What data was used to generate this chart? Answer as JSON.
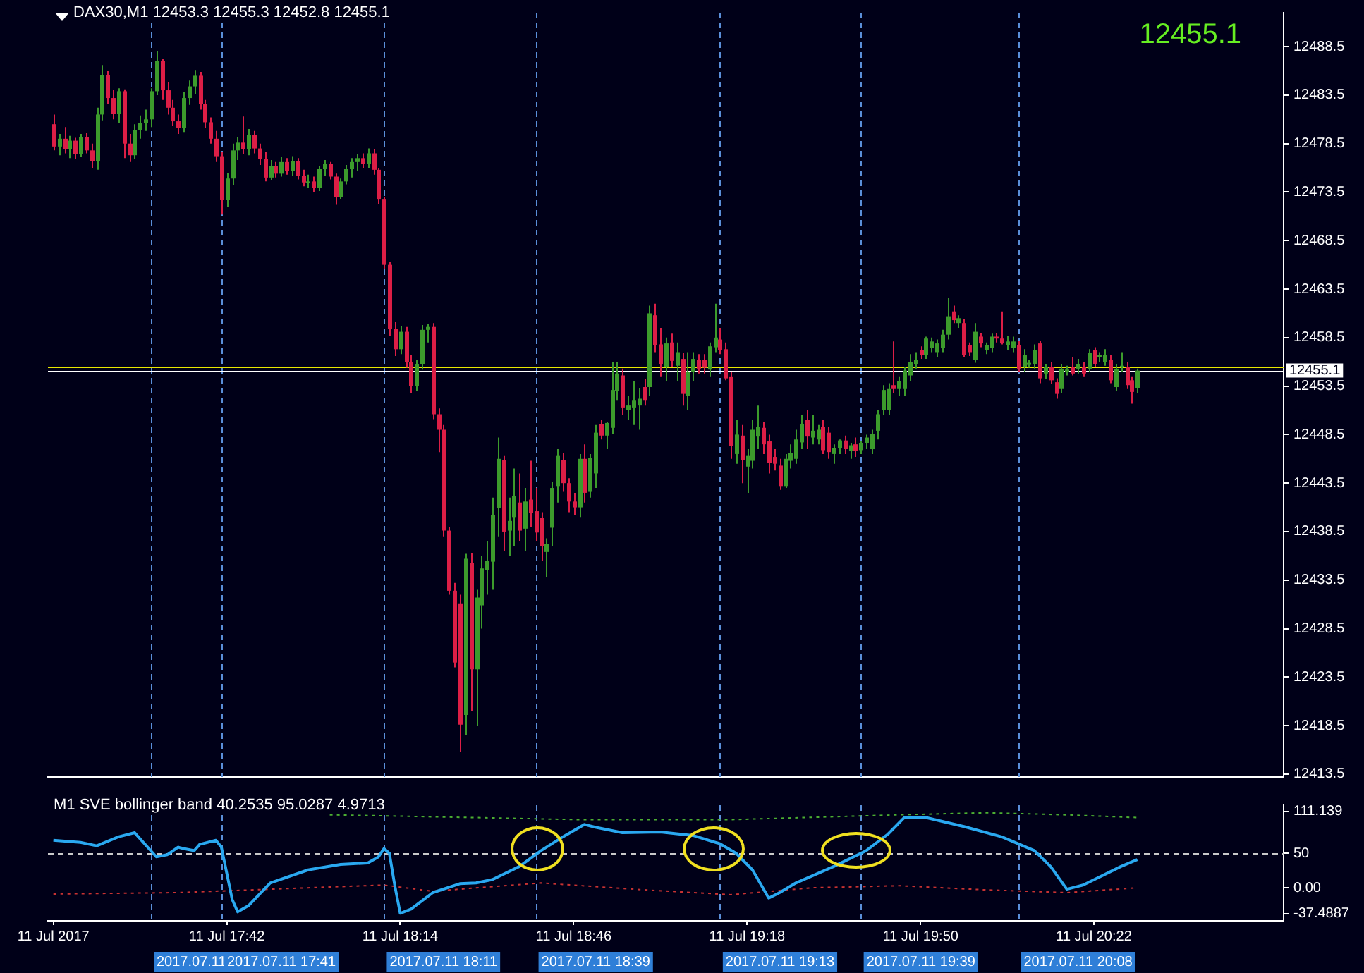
{
  "chart_data": [
    {
      "type": "candlestick",
      "title": "DAX30,M1  12453.3 12455.3 12452.8 12455.1",
      "annotations": [
        "12455.1"
      ],
      "xlim": [
        "2017-07-11T17:09",
        "2017-07-11T20:57"
      ],
      "ylim": [
        12413.2,
        12492.0
      ],
      "yticks": [
        12413.5,
        12418.5,
        12423.5,
        12428.5,
        12433.5,
        12438.5,
        12443.5,
        12448.5,
        12453.5,
        12458.5,
        12463.5,
        12468.5,
        12473.5,
        12478.5,
        12483.5,
        12488.5
      ],
      "tick_labels": "y",
      "ref_lines": [
        {
          "axis": "x",
          "value": "2017-07-11T17:28",
          "label": null,
          "color": "#5b8fd9",
          "line_style": "dashed"
        },
        {
          "axis": "x",
          "value": "2017-07-11T17:41",
          "label": null,
          "color": "#5b8fd9",
          "line_style": "dashed"
        },
        {
          "axis": "x",
          "value": "2017-07-11T18:11",
          "label": null,
          "color": "#5b8fd9",
          "line_style": "dashed"
        },
        {
          "axis": "x",
          "value": "2017-07-11T18:39",
          "label": null,
          "color": "#5b8fd9",
          "line_style": "dashed"
        },
        {
          "axis": "x",
          "value": "2017-07-11T19:13",
          "label": null,
          "color": "#5b8fd9",
          "line_style": "dashed"
        },
        {
          "axis": "x",
          "value": "2017-07-11T19:39",
          "label": null,
          "color": "#5b8fd9",
          "line_style": "dashed"
        },
        {
          "axis": "x",
          "value": "2017-07-11T20:08",
          "label": null,
          "color": "#5b8fd9",
          "line_style": "dashed"
        },
        {
          "axis": "y",
          "value": 12455.5,
          "label": null,
          "color": "#e8e800",
          "line_style": "solid"
        },
        {
          "axis": "y",
          "value": 12455.1,
          "label": "12455.1",
          "color": "#ffffff",
          "line_style": "solid"
        }
      ],
      "x": [
        "2017-07-11T17:10",
        "2017-07-11T17:11",
        "2017-07-11T17:12",
        "2017-07-11T17:13",
        "2017-07-11T17:14",
        "2017-07-11T17:15",
        "2017-07-11T17:16",
        "2017-07-11T17:17",
        "2017-07-11T17:18",
        "2017-07-11T17:19",
        "2017-07-11T17:20",
        "2017-07-11T17:21",
        "2017-07-11T17:22",
        "2017-07-11T17:23",
        "2017-07-11T17:24",
        "2017-07-11T17:25",
        "2017-07-11T17:26",
        "2017-07-11T17:27",
        "2017-07-11T17:28",
        "2017-07-11T17:29",
        "2017-07-11T17:30",
        "2017-07-11T17:31",
        "2017-07-11T17:32",
        "2017-07-11T17:33",
        "2017-07-11T17:34",
        "2017-07-11T17:35",
        "2017-07-11T17:36",
        "2017-07-11T17:37",
        "2017-07-11T17:38",
        "2017-07-11T17:39",
        "2017-07-11T17:40",
        "2017-07-11T17:41",
        "2017-07-11T17:42",
        "2017-07-11T17:43",
        "2017-07-11T17:44",
        "2017-07-11T17:45",
        "2017-07-11T17:46",
        "2017-07-11T17:47",
        "2017-07-11T17:48",
        "2017-07-11T17:49",
        "2017-07-11T17:50",
        "2017-07-11T17:51",
        "2017-07-11T17:52",
        "2017-07-11T17:53",
        "2017-07-11T17:54",
        "2017-07-11T17:55",
        "2017-07-11T17:56",
        "2017-07-11T17:57",
        "2017-07-11T17:58",
        "2017-07-11T17:59",
        "2017-07-11T18:00",
        "2017-07-11T18:01",
        "2017-07-11T18:02",
        "2017-07-11T18:03",
        "2017-07-11T18:04",
        "2017-07-11T18:05",
        "2017-07-11T18:06",
        "2017-07-11T18:07",
        "2017-07-11T18:08",
        "2017-07-11T18:09",
        "2017-07-11T18:10",
        "2017-07-11T18:11",
        "2017-07-11T18:12",
        "2017-07-11T18:13",
        "2017-07-11T18:14",
        "2017-07-11T18:15",
        "2017-07-11T18:16",
        "2017-07-11T18:17",
        "2017-07-11T18:18",
        "2017-07-11T18:19",
        "2017-07-11T18:20",
        "2017-07-11T18:21",
        "2017-07-11T18:22",
        "2017-07-11T18:23",
        "2017-07-11T18:24",
        "2017-07-11T18:25",
        "2017-07-11T18:26",
        "2017-07-11T18:27",
        "2017-07-11T18:28",
        "2017-07-11T18:29",
        "2017-07-11T18:30",
        "2017-07-11T18:31",
        "2017-07-11T18:32",
        "2017-07-11T18:33",
        "2017-07-11T18:34",
        "2017-07-11T18:35",
        "2017-07-11T18:36",
        "2017-07-11T18:37",
        "2017-07-11T18:38",
        "2017-07-11T18:39",
        "2017-07-11T18:40",
        "2017-07-11T18:41",
        "2017-07-11T18:42",
        "2017-07-11T18:43",
        "2017-07-11T18:44",
        "2017-07-11T18:45",
        "2017-07-11T18:46",
        "2017-07-11T18:47",
        "2017-07-11T18:48",
        "2017-07-11T18:49",
        "2017-07-11T18:50",
        "2017-07-11T18:51",
        "2017-07-11T18:52",
        "2017-07-11T18:53",
        "2017-07-11T18:54",
        "2017-07-11T18:55",
        "2017-07-11T18:56",
        "2017-07-11T18:57",
        "2017-07-11T18:58",
        "2017-07-11T18:59",
        "2017-07-11T19:00",
        "2017-07-11T19:01",
        "2017-07-11T19:02",
        "2017-07-11T19:03",
        "2017-07-11T19:04",
        "2017-07-11T19:05",
        "2017-07-11T19:06",
        "2017-07-11T19:07",
        "2017-07-11T19:08",
        "2017-07-11T19:09",
        "2017-07-11T19:10",
        "2017-07-11T19:11",
        "2017-07-11T19:12",
        "2017-07-11T19:13",
        "2017-07-11T19:14",
        "2017-07-11T19:15",
        "2017-07-11T19:16",
        "2017-07-11T19:17",
        "2017-07-11T19:18",
        "2017-07-11T19:19",
        "2017-07-11T19:20",
        "2017-07-11T19:21",
        "2017-07-11T19:22",
        "2017-07-11T19:23",
        "2017-07-11T19:24",
        "2017-07-11T19:25",
        "2017-07-11T19:26",
        "2017-07-11T19:27",
        "2017-07-11T19:28",
        "2017-07-11T19:29",
        "2017-07-11T19:30",
        "2017-07-11T19:31",
        "2017-07-11T19:32",
        "2017-07-11T19:33",
        "2017-07-11T19:34",
        "2017-07-11T19:35",
        "2017-07-11T19:36",
        "2017-07-11T19:37",
        "2017-07-11T19:38",
        "2017-07-11T19:39",
        "2017-07-11T19:40",
        "2017-07-11T19:41",
        "2017-07-11T19:42",
        "2017-07-11T19:43",
        "2017-07-11T19:44",
        "2017-07-11T19:45",
        "2017-07-11T19:46",
        "2017-07-11T19:47",
        "2017-07-11T19:48",
        "2017-07-11T19:49",
        "2017-07-11T19:50",
        "2017-07-11T19:51",
        "2017-07-11T19:52",
        "2017-07-11T19:53",
        "2017-07-11T19:54",
        "2017-07-11T19:55",
        "2017-07-11T19:56",
        "2017-07-11T19:57",
        "2017-07-11T19:58",
        "2017-07-11T19:59",
        "2017-07-11T20:00",
        "2017-07-11T20:01",
        "2017-07-11T20:02",
        "2017-07-11T20:03",
        "2017-07-11T20:04",
        "2017-07-11T20:05",
        "2017-07-11T20:06",
        "2017-07-11T20:07",
        "2017-07-11T20:08",
        "2017-07-11T20:09",
        "2017-07-11T20:10",
        "2017-07-11T20:11",
        "2017-07-11T20:12",
        "2017-07-11T20:13",
        "2017-07-11T20:14",
        "2017-07-11T20:15",
        "2017-07-11T20:16",
        "2017-07-11T20:17",
        "2017-07-11T20:18",
        "2017-07-11T20:19",
        "2017-07-11T20:20",
        "2017-07-11T20:21",
        "2017-07-11T20:22",
        "2017-07-11T20:23",
        "2017-07-11T20:24",
        "2017-07-11T20:25",
        "2017-07-11T20:26",
        "2017-07-11T20:27",
        "2017-07-11T20:28",
        "2017-07-11T20:29",
        "2017-07-11T20:30"
      ],
      "ohlc": [
        [
          12480.5,
          12481.5,
          12477.8,
          12478.2
        ],
        [
          12478.2,
          12479.5,
          12477.3,
          12479.0
        ],
        [
          12479.0,
          12480.2,
          12477.5,
          12477.9
        ],
        [
          12477.9,
          12479.3,
          12477.0,
          12478.8
        ],
        [
          12478.8,
          12479.1,
          12476.9,
          12477.4
        ],
        [
          12477.4,
          12479.5,
          12477.1,
          12479.2
        ],
        [
          12479.2,
          12479.6,
          12477.5,
          12477.8
        ],
        [
          12477.8,
          12478.5,
          12476.0,
          12476.7
        ],
        [
          12476.7,
          12482.2,
          12475.8,
          12481.5
        ],
        [
          12481.5,
          12486.6,
          12480.9,
          12485.6
        ],
        [
          12485.6,
          12486.0,
          12482.6,
          12483.2
        ],
        [
          12483.2,
          12484.0,
          12481.0,
          12481.6
        ],
        [
          12481.6,
          12484.2,
          12480.6,
          12483.9
        ],
        [
          12483.9,
          12484.1,
          12477.0,
          12478.5
        ],
        [
          12478.5,
          12479.5,
          12476.6,
          12477.3
        ],
        [
          12477.3,
          12480.5,
          12476.9,
          12479.9
        ],
        [
          12479.9,
          12481.4,
          12479.0,
          12480.6
        ],
        [
          12480.6,
          12482.0,
          12479.8,
          12481.0
        ],
        [
          12481.0,
          12484.2,
          12480.2,
          12483.9
        ],
        [
          12483.9,
          12488.0,
          12483.5,
          12487.0
        ],
        [
          12487.0,
          12487.2,
          12483.0,
          12484.0
        ],
        [
          12484.0,
          12484.8,
          12481.5,
          12482.2
        ],
        [
          12482.2,
          12483.0,
          12480.3,
          12480.8
        ],
        [
          12480.8,
          12481.5,
          12479.5,
          12480.1
        ],
        [
          12480.1,
          12483.8,
          12479.7,
          12483.2
        ],
        [
          12483.2,
          12485.0,
          12482.5,
          12484.4
        ],
        [
          12484.4,
          12486.1,
          12483.6,
          12485.5
        ],
        [
          12485.5,
          12485.9,
          12482.0,
          12482.6
        ],
        [
          12482.6,
          12483.0,
          12480.1,
          12480.7
        ],
        [
          12480.7,
          12481.2,
          12478.5,
          12479.0
        ],
        [
          12479.0,
          12479.8,
          12476.6,
          12477.2
        ],
        [
          12477.2,
          12477.6,
          12471.2,
          12472.7
        ],
        [
          12472.7,
          12475.5,
          12472.0,
          12474.9
        ],
        [
          12474.9,
          12478.5,
          12474.2,
          12477.8
        ],
        [
          12477.8,
          12479.2,
          12476.8,
          12478.6
        ],
        [
          12478.6,
          12481.3,
          12477.4,
          12477.9
        ],
        [
          12477.9,
          12480.0,
          12477.3,
          12479.4
        ],
        [
          12479.4,
          12479.8,
          12477.5,
          12478.0
        ],
        [
          12478.0,
          12478.5,
          12476.3,
          12476.9
        ],
        [
          12476.9,
          12477.6,
          12474.6,
          12475.0
        ],
        [
          12475.0,
          12476.8,
          12474.7,
          12476.2
        ],
        [
          12476.2,
          12476.6,
          12475.0,
          12475.4
        ],
        [
          12475.4,
          12477.1,
          12475.1,
          12476.6
        ],
        [
          12476.6,
          12477.0,
          12475.3,
          12475.7
        ],
        [
          12475.7,
          12477.2,
          12475.2,
          12476.7
        ],
        [
          12476.7,
          12477.0,
          12474.8,
          12475.2
        ],
        [
          12475.2,
          12475.8,
          12474.1,
          12474.5
        ],
        [
          12474.5,
          12475.3,
          12473.9,
          12474.6
        ],
        [
          12474.6,
          12475.1,
          12473.5,
          12473.9
        ],
        [
          12473.9,
          12476.2,
          12473.6,
          12475.9
        ],
        [
          12475.9,
          12476.8,
          12475.2,
          12476.4
        ],
        [
          12476.4,
          12476.6,
          12474.8,
          12475.1
        ],
        [
          12475.1,
          12475.4,
          12472.2,
          12473.0
        ],
        [
          12473.0,
          12474.9,
          12472.8,
          12474.6
        ],
        [
          12474.6,
          12476.3,
          12474.3,
          12475.9
        ],
        [
          12475.9,
          12477.0,
          12475.0,
          12476.6
        ],
        [
          12476.6,
          12477.4,
          12475.7,
          12477.0
        ],
        [
          12477.0,
          12477.5,
          12476.0,
          12476.4
        ],
        [
          12476.4,
          12478.0,
          12476.0,
          12477.5
        ],
        [
          12477.5,
          12477.9,
          12475.3,
          12475.8
        ],
        [
          12475.8,
          12476.0,
          12472.3,
          12472.8
        ],
        [
          12472.8,
          12473.0,
          12465.6,
          12466.0
        ],
        [
          12466.0,
          12466.3,
          12458.7,
          12459.4
        ],
        [
          12459.4,
          12460.1,
          12456.6,
          12457.3
        ],
        [
          12457.3,
          12459.7,
          12456.8,
          12459.1
        ],
        [
          12459.1,
          12459.6,
          12455.4,
          12456.0
        ],
        [
          12456.0,
          12456.7,
          12452.8,
          12453.5
        ],
        [
          12453.5,
          12456.2,
          12453.0,
          12455.8
        ],
        [
          12455.8,
          12459.8,
          12455.2,
          12459.3
        ],
        [
          12459.3,
          12459.9,
          12458.0,
          12459.6
        ],
        [
          12459.6,
          12460.0,
          12450.1,
          12450.6
        ],
        [
          12450.6,
          12451.2,
          12446.7,
          12449.0
        ],
        [
          12449.0,
          12449.5,
          12438.0,
          12438.6
        ],
        [
          12438.6,
          12439.0,
          12432.0,
          12432.4
        ],
        [
          12432.4,
          12433.2,
          12424.5,
          12425.0
        ],
        [
          12431.1,
          12432.0,
          12415.8,
          12418.6
        ],
        [
          12419.6,
          12436.2,
          12417.5,
          12435.7
        ],
        [
          12435.3,
          12436.3,
          12420.0,
          12424.3
        ],
        [
          12424.3,
          12432.5,
          12418.5,
          12431.7
        ],
        [
          12430.9,
          12436.0,
          12428.5,
          12434.7
        ],
        [
          12434.5,
          12437.5,
          12432.0,
          12435.5
        ],
        [
          12435.4,
          12442.0,
          12432.5,
          12440.2
        ],
        [
          12440.9,
          12448.2,
          12438.0,
          12446.0
        ],
        [
          12445.9,
          12446.3,
          12436.5,
          12438.5
        ],
        [
          12438.6,
          12442.0,
          12436.0,
          12439.6
        ],
        [
          12440.0,
          12445.0,
          12437.0,
          12442.2
        ],
        [
          12441.5,
          12444.5,
          12437.5,
          12438.6
        ],
        [
          12438.8,
          12443.0,
          12436.5,
          12441.6
        ],
        [
          12441.8,
          12445.8,
          12439.0,
          12440.4
        ],
        [
          12440.6,
          12443.0,
          12437.5,
          12438.4
        ],
        [
          12439.9,
          12440.5,
          12435.5,
          12437.0
        ],
        [
          12436.4,
          12437.8,
          12433.8,
          12437.2
        ],
        [
          12438.9,
          12443.6,
          12437.0,
          12443.0
        ],
        [
          12443.2,
          12447.0,
          12441.5,
          12446.3
        ],
        [
          12445.9,
          12446.6,
          12442.6,
          12443.5
        ],
        [
          12443.5,
          12444.0,
          12440.5,
          12441.6
        ],
        [
          12441.6,
          12442.5,
          12440.2,
          12441.0
        ],
        [
          12441.0,
          12446.5,
          12440.0,
          12446.0
        ],
        [
          12446.0,
          12447.5,
          12441.5,
          12442.5
        ],
        [
          12442.6,
          12446.5,
          12442.0,
          12446.1
        ],
        [
          12444.5,
          12449.5,
          12443.0,
          12448.7
        ],
        [
          12449.6,
          12450.0,
          12448.0,
          12448.4
        ],
        [
          12448.4,
          12449.8,
          12447.0,
          12449.7
        ],
        [
          12449.2,
          12456.0,
          12448.6,
          12453.1
        ],
        [
          12453.0,
          12456.0,
          12452.0,
          12454.8
        ],
        [
          12454.6,
          12455.3,
          12450.5,
          12451.3
        ],
        [
          12451.0,
          12452.5,
          12450.0,
          12451.5
        ],
        [
          12451.3,
          12454.0,
          12449.5,
          12452.0
        ],
        [
          12451.5,
          12453.3,
          12449.0,
          12452.2
        ],
        [
          12453.4,
          12454.2,
          12451.5,
          12452.0
        ],
        [
          12453.4,
          12461.8,
          12452.5,
          12461.0
        ],
        [
          12460.8,
          12462.0,
          12457.0,
          12457.7
        ],
        [
          12457.8,
          12459.5,
          12454.5,
          12455.8
        ],
        [
          12455.5,
          12458.5,
          12454.0,
          12457.9
        ],
        [
          12458.0,
          12458.9,
          12455.5,
          12456.1
        ],
        [
          12455.6,
          12458.0,
          12454.0,
          12457.0
        ],
        [
          12456.3,
          12456.9,
          12451.5,
          12452.7
        ],
        [
          12452.5,
          12457.0,
          12451.0,
          12455.0
        ],
        [
          12455.0,
          12457.0,
          12454.0,
          12456.3
        ],
        [
          12456.2,
          12456.8,
          12454.8,
          12455.3
        ],
        [
          12456.2,
          12456.8,
          12454.8,
          12455.4
        ],
        [
          12455.2,
          12458.0,
          12454.5,
          12457.6
        ],
        [
          12457.5,
          12462.0,
          12457.0,
          12458.5
        ],
        [
          12458.3,
          12459.5,
          12456.8,
          12457.2
        ],
        [
          12457.3,
          12458.0,
          12454.1,
          12454.3
        ],
        [
          12454.5,
          12455.0,
          12446.0,
          12447.3
        ],
        [
          12446.5,
          12450.0,
          12445.5,
          12448.5
        ],
        [
          12448.4,
          12449.5,
          12443.5,
          12445.9
        ],
        [
          12445.2,
          12447.0,
          12442.5,
          12446.3
        ],
        [
          12445.8,
          12450.0,
          12445.0,
          12449.0
        ],
        [
          12448.3,
          12451.5,
          12447.0,
          12449.3
        ],
        [
          12449.2,
          12449.8,
          12446.5,
          12447.5
        ],
        [
          12447.8,
          12448.5,
          12444.5,
          12445.6
        ],
        [
          12446.2,
          12447.0,
          12444.8,
          12445.5
        ],
        [
          12445.3,
          12446.0,
          12442.8,
          12443.2
        ],
        [
          12443.2,
          12446.5,
          12443.0,
          12446.0
        ],
        [
          12445.8,
          12447.5,
          12445.0,
          12446.6
        ],
        [
          12446.0,
          12449.0,
          12445.5,
          12448.0
        ],
        [
          12447.7,
          12450.5,
          12447.0,
          12449.6
        ],
        [
          12450.0,
          12451.0,
          12447.0,
          12448.3
        ],
        [
          12448.2,
          12450.5,
          12447.5,
          12448.9
        ],
        [
          12448.0,
          12449.5,
          12447.5,
          12449.0
        ],
        [
          12449.3,
          12450.0,
          12446.5,
          12446.9
        ],
        [
          12448.7,
          12449.3,
          12446.0,
          12446.7
        ],
        [
          12446.5,
          12447.5,
          12445.5,
          12447.1
        ],
        [
          12447.1,
          12448.0,
          12446.5,
          12447.9
        ],
        [
          12447.9,
          12448.4,
          12446.5,
          12447.0
        ],
        [
          12446.8,
          12447.6,
          12446.0,
          12447.4
        ],
        [
          12447.5,
          12448.2,
          12446.2,
          12446.8
        ],
        [
          12446.9,
          12447.8,
          12446.5,
          12447.6
        ],
        [
          12447.6,
          12448.5,
          12447.0,
          12448.2
        ],
        [
          12447.0,
          12449.0,
          12446.5,
          12448.6
        ],
        [
          12448.9,
          12451.0,
          12448.0,
          12450.6
        ],
        [
          12451.0,
          12453.6,
          12450.5,
          12453.1
        ],
        [
          12451.0,
          12453.8,
          12450.5,
          12453.2
        ],
        [
          12453.6,
          12458.1,
          12452.8,
          12453.2
        ],
        [
          12453.2,
          12454.5,
          12452.5,
          12454.0
        ],
        [
          12453.2,
          12455.5,
          12452.5,
          12455.1
        ],
        [
          12454.6,
          12456.8,
          12454.0,
          12456.0
        ],
        [
          12455.8,
          12457.0,
          12455.3,
          12456.2
        ],
        [
          12457.2,
          12457.6,
          12456.3,
          12456.7
        ],
        [
          12456.7,
          12458.6,
          12456.3,
          12458.4
        ],
        [
          12457.4,
          12458.5,
          12457.0,
          12458.1
        ],
        [
          12457.0,
          12458.3,
          12456.5,
          12457.9
        ],
        [
          12457.4,
          12459.3,
          12457.0,
          12458.8
        ],
        [
          12458.8,
          12462.6,
          12458.3,
          12460.7
        ],
        [
          12461.2,
          12461.8,
          12460.0,
          12460.3
        ],
        [
          12460.0,
          12460.8,
          12459.5,
          12460.5
        ],
        [
          12460.0,
          12460.4,
          12456.5,
          12456.7
        ],
        [
          12457.7,
          12458.0,
          12456.6,
          12457.0
        ],
        [
          12456.2,
          12460.0,
          12455.9,
          12459.1
        ],
        [
          12458.6,
          12459.0,
          12457.5,
          12457.9
        ],
        [
          12457.2,
          12458.0,
          12456.8,
          12457.7
        ],
        [
          12457.4,
          12458.9,
          12457.0,
          12458.6
        ],
        [
          12458.6,
          12459.0,
          12458.0,
          12458.4
        ],
        [
          12458.4,
          12461.2,
          12457.8,
          12457.9
        ],
        [
          12457.7,
          12458.7,
          12457.2,
          12458.1
        ],
        [
          12457.4,
          12458.6,
          12457.0,
          12458.1
        ],
        [
          12457.7,
          12458.2,
          12455.0,
          12455.3
        ],
        [
          12455.5,
          12457.3,
          12455.0,
          12456.7
        ],
        [
          12455.8,
          12456.2,
          12455.4,
          12455.9
        ],
        [
          12455.8,
          12457.8,
          12455.3,
          12457.2
        ],
        [
          12457.9,
          12458.2,
          12453.8,
          12454.3
        ],
        [
          12454.8,
          12455.8,
          12454.2,
          12455.5
        ],
        [
          12455.5,
          12456.0,
          12453.7,
          12454.1
        ],
        [
          12453.9,
          12454.3,
          12452.2,
          12452.7
        ],
        [
          12453.2,
          12455.8,
          12452.8,
          12455.3
        ],
        [
          12455.0,
          12455.6,
          12454.6,
          12455.2
        ],
        [
          12455.5,
          12456.5,
          12454.6,
          12454.8
        ],
        [
          12455.3,
          12456.3,
          12454.8,
          12455.8
        ],
        [
          12455.5,
          12456.0,
          12454.5,
          12454.8
        ],
        [
          12455.3,
          12457.3,
          12455.0,
          12456.9
        ],
        [
          12457.2,
          12457.5,
          12455.5,
          12455.8
        ],
        [
          12456.5,
          12457.0,
          12456.0,
          12456.7
        ],
        [
          12456.0,
          12457.3,
          12455.6,
          12456.7
        ],
        [
          12456.2,
          12456.7,
          12453.8,
          12454.1
        ],
        [
          12453.4,
          12455.8,
          12453.0,
          12455.3
        ],
        [
          12455.5,
          12457.0,
          12455.0,
          12455.6
        ],
        [
          12455.5,
          12456.0,
          12453.2,
          12453.6
        ],
        [
          12454.1,
          12454.5,
          12451.7,
          12452.9
        ],
        [
          12453.3,
          12455.3,
          12452.8,
          12455.1
        ]
      ],
      "colors": [
        "#dc1e46",
        "#3c9b2c",
        "#dc1e46",
        "#3c9b2c",
        "#dc1e46",
        "#3c9b2c",
        "#dc1e46",
        "#dc1e46",
        "#3c9b2c",
        "#3c9b2c",
        "#dc1e46",
        "#dc1e46",
        "#3c9b2c",
        "#dc1e46",
        "#dc1e46",
        "#3c9b2c",
        "#3c9b2c",
        "#3c9b2c",
        "#3c9b2c",
        "#3c9b2c",
        "#dc1e46",
        "#dc1e46",
        "#dc1e46",
        "#dc1e46",
        "#3c9b2c",
        "#3c9b2c",
        "#3c9b2c",
        "#dc1e46",
        "#dc1e46",
        "#dc1e46",
        "#dc1e46",
        "#dc1e46",
        "#3c9b2c",
        "#3c9b2c",
        "#3c9b2c",
        "#dc1e46",
        "#3c9b2c",
        "#dc1e46",
        "#dc1e46",
        "#dc1e46",
        "#3c9b2c",
        "#dc1e46",
        "#3c9b2c",
        "#dc1e46",
        "#3c9b2c",
        "#dc1e46",
        "#dc1e46",
        "#3c9b2c",
        "#dc1e46",
        "#3c9b2c",
        "#3c9b2c",
        "#dc1e46",
        "#dc1e46",
        "#3c9b2c",
        "#3c9b2c",
        "#3c9b2c",
        "#3c9b2c",
        "#dc1e46",
        "#3c9b2c",
        "#dc1e46",
        "#dc1e46",
        "#dc1e46",
        "#dc1e46",
        "#dc1e46",
        "#3c9b2c",
        "#dc1e46",
        "#dc1e46",
        "#3c9b2c",
        "#3c9b2c",
        "#3c9b2c",
        "#dc1e46",
        "#dc1e46",
        "#dc1e46",
        "#dc1e46",
        "#dc1e46",
        "#dc1e46",
        "#3c9b2c",
        "#dc1e46",
        "#3c9b2c",
        "#3c9b2c",
        "#3c9b2c",
        "#3c9b2c",
        "#3c9b2c",
        "#dc1e46",
        "#3c9b2c",
        "#3c9b2c",
        "#dc1e46",
        "#3c9b2c",
        "#dc1e46",
        "#dc1e46",
        "#dc1e46",
        "#3c9b2c",
        "#3c9b2c",
        "#3c9b2c",
        "#dc1e46",
        "#dc1e46",
        "#dc1e46",
        "#3c9b2c",
        "#dc1e46",
        "#3c9b2c",
        "#3c9b2c",
        "#dc1e46",
        "#3c9b2c",
        "#3c9b2c",
        "#3c9b2c",
        "#dc1e46",
        "#3c9b2c",
        "#3c9b2c",
        "#3c9b2c",
        "#dc1e46",
        "#3c9b2c",
        "#dc1e46",
        "#dc1e46",
        "#3c9b2c",
        "#dc1e46",
        "#3c9b2c",
        "#dc1e46",
        "#3c9b2c",
        "#3c9b2c",
        "#dc1e46",
        "#dc1e46",
        "#3c9b2c",
        "#3c9b2c",
        "#dc1e46",
        "#dc1e46",
        "#dc1e46",
        "#3c9b2c",
        "#dc1e46",
        "#3c9b2c",
        "#3c9b2c",
        "#3c9b2c",
        "#dc1e46",
        "#dc1e46",
        "#dc1e46",
        "#dc1e46",
        "#3c9b2c",
        "#3c9b2c",
        "#3c9b2c",
        "#3c9b2c",
        "#dc1e46",
        "#3c9b2c",
        "#3c9b2c",
        "#dc1e46",
        "#dc1e46",
        "#3c9b2c",
        "#3c9b2c",
        "#dc1e46",
        "#3c9b2c",
        "#dc1e46",
        "#3c9b2c",
        "#3c9b2c",
        "#3c9b2c",
        "#3c9b2c",
        "#3c9b2c",
        "#3c9b2c",
        "#dc1e46",
        "#3c9b2c",
        "#3c9b2c",
        "#3c9b2c",
        "#3c9b2c",
        "#dc1e46",
        "#3c9b2c",
        "#3c9b2c",
        "#3c9b2c",
        "#3c9b2c",
        "#3c9b2c",
        "#dc1e46",
        "#3c9b2c",
        "#dc1e46",
        "#dc1e46",
        "#3c9b2c",
        "#dc1e46",
        "#3c9b2c",
        "#3c9b2c",
        "#dc1e46",
        "#dc1e46",
        "#3c9b2c",
        "#3c9b2c",
        "#dc1e46",
        "#3c9b2c",
        "#3c9b2c",
        "#3c9b2c",
        "#dc1e46",
        "#3c9b2c",
        "#dc1e46",
        "#dc1e46",
        "#3c9b2c",
        "#3c9b2c",
        "#dc1e46",
        "#3c9b2c",
        "#dc1e46",
        "#3c9b2c",
        "#dc1e46",
        "#3c9b2c",
        "#3c9b2c",
        "#dc1e46",
        "#3c9b2c",
        "#3c9b2c",
        "#dc1e46",
        "#dc1e46",
        "#3c9b2c"
      ]
    },
    {
      "type": "line",
      "title": "M1 SVE bollinger band 40.2535 95.0287 4.9713",
      "xlim": [
        "2017-07-11T17:09",
        "2017-07-11T20:57"
      ],
      "ylim": [
        -48,
        120
      ],
      "xticks": [
        {
          "value": "2017-07-11T17:10",
          "label": "11 Jul 2017"
        },
        {
          "value": "2017-07-11T17:42",
          "label": "11 Jul 17:42"
        },
        {
          "value": "2017-07-11T18:14",
          "label": "11 Jul 18:14"
        },
        {
          "value": "2017-07-11T18:46",
          "label": "11 Jul 18:46"
        },
        {
          "value": "2017-07-11T19:18",
          "label": "11 Jul 19:18"
        },
        {
          "value": "2017-07-11T19:50",
          "label": "11 Jul 19:50"
        },
        {
          "value": "2017-07-11T20:22",
          "label": "11 Jul 20:22"
        }
      ],
      "yticks": [
        -37.4887,
        {
          "value": 0,
          "label": "0.00"
        },
        50,
        111.139
      ],
      "ref_lines": [
        {
          "axis": "x",
          "value": "2017-07-11T17:28",
          "label": "2017.07.11",
          "color": "#5b8fd9",
          "line_style": "dashed"
        },
        {
          "axis": "x",
          "value": "2017-07-11T17:41",
          "label": "2017.07.11 17:41",
          "color": "#5b8fd9",
          "line_style": "dashed"
        },
        {
          "axis": "x",
          "value": "2017-07-11T18:11",
          "label": "2017.07.11 18:11",
          "color": "#5b8fd9",
          "line_style": "dashed"
        },
        {
          "axis": "x",
          "value": "2017-07-11T18:39",
          "label": "2017.07.11 18:39",
          "color": "#5b8fd9",
          "line_style": "dashed"
        },
        {
          "axis": "x",
          "value": "2017-07-11T19:13",
          "label": "2017.07.11 19:13",
          "color": "#5b8fd9",
          "line_style": "dashed"
        },
        {
          "axis": "x",
          "value": "2017-07-11T19:39",
          "label": "2017.07.11 19:39",
          "color": "#5b8fd9",
          "line_style": "dashed"
        },
        {
          "axis": "x",
          "value": "2017-07-11T20:08",
          "label": "2017.07.11 20:08",
          "color": "#5b8fd9",
          "line_style": "dashed"
        },
        {
          "axis": "y",
          "value": 50,
          "label": null,
          "color": "#c8c8c8",
          "line_style": "dashed"
        }
      ],
      "series": [
        {
          "color": "#2aa8f0",
          "line_style": "solid",
          "x": [
            "2017-07-11T17:10",
            "2017-07-11T17:15",
            "2017-07-11T17:18",
            "2017-07-11T17:22",
            "2017-07-11T17:25",
            "2017-07-11T17:29",
            "2017-07-11T17:31",
            "2017-07-11T17:33",
            "2017-07-11T17:34",
            "2017-07-11T17:36",
            "2017-07-11T17:37",
            "2017-07-11T17:40",
            "2017-07-11T17:41",
            "2017-07-11T17:42",
            "2017-07-11T17:43",
            "2017-07-11T17:44",
            "2017-07-11T17:46",
            "2017-07-11T17:50",
            "2017-07-11T17:57",
            "2017-07-11T18:03",
            "2017-07-11T18:08",
            "2017-07-11T18:10",
            "2017-07-11T18:11",
            "2017-07-11T18:12",
            "2017-07-11T18:13",
            "2017-07-11T18:14",
            "2017-07-11T18:16",
            "2017-07-11T18:20",
            "2017-07-11T18:25",
            "2017-07-11T18:28",
            "2017-07-11T18:31",
            "2017-07-11T18:36",
            "2017-07-11T18:40",
            "2017-07-11T18:44",
            "2017-07-11T18:48",
            "2017-07-11T18:50",
            "2017-07-11T18:55",
            "2017-07-11T19:02",
            "2017-07-11T19:08",
            "2017-07-11T19:13",
            "2017-07-11T19:16",
            "2017-07-11T19:19",
            "2017-07-11T19:22",
            "2017-07-11T19:24",
            "2017-07-11T19:27",
            "2017-07-11T19:34",
            "2017-07-11T19:40",
            "2017-07-11T19:44",
            "2017-07-11T19:47",
            "2017-07-11T19:51",
            "2017-07-11T19:58",
            "2017-07-11T20:05",
            "2017-07-11T20:11",
            "2017-07-11T20:14",
            "2017-07-11T20:17",
            "2017-07-11T20:20",
            "2017-07-11T20:27",
            "2017-07-11T20:30"
          ],
          "values": [
            69,
            66,
            61,
            74,
            80,
            45,
            48,
            59,
            57,
            54,
            63,
            69,
            59,
            21,
            -17,
            -35,
            -26,
            7,
            26,
            34,
            36,
            45,
            57,
            50,
            3,
            -37,
            -31,
            -7,
            6,
            7,
            12,
            31,
            54,
            74,
            92,
            88,
            80,
            81,
            76,
            64,
            50,
            26,
            -15,
            -7,
            7,
            31,
            54,
            78,
            102,
            102,
            89,
            74,
            54,
            31,
            -2,
            4,
            31,
            41
          ]
        },
        {
          "color": "#4caf32",
          "line_style": "dotted",
          "x": [
            "2017-07-11T18:01",
            "2017-07-11T18:28",
            "2017-07-11T18:47",
            "2017-07-11T19:15",
            "2017-07-11T19:46",
            "2017-07-11T20:02",
            "2017-07-11T20:17",
            "2017-07-11T20:30"
          ],
          "values": [
            106,
            102,
            99,
            99,
            106,
            109,
            106,
            102
          ]
        },
        {
          "color": "#c83232",
          "line_style": "dotted",
          "x": [
            "2017-07-11T17:10",
            "2017-07-11T17:33",
            "2017-07-11T17:57",
            "2017-07-11T18:11",
            "2017-07-11T18:20",
            "2017-07-11T18:40",
            "2017-07-11T18:59",
            "2017-07-11T19:15",
            "2017-07-11T19:30",
            "2017-07-11T19:46",
            "2017-07-11T20:02",
            "2017-07-11T20:17",
            "2017-07-11T20:30"
          ],
          "values": [
            -9,
            -7,
            0,
            4,
            -5,
            7,
            -3,
            -10,
            0,
            3,
            -3,
            -7,
            0
          ]
        }
      ]
    }
  ]
}
